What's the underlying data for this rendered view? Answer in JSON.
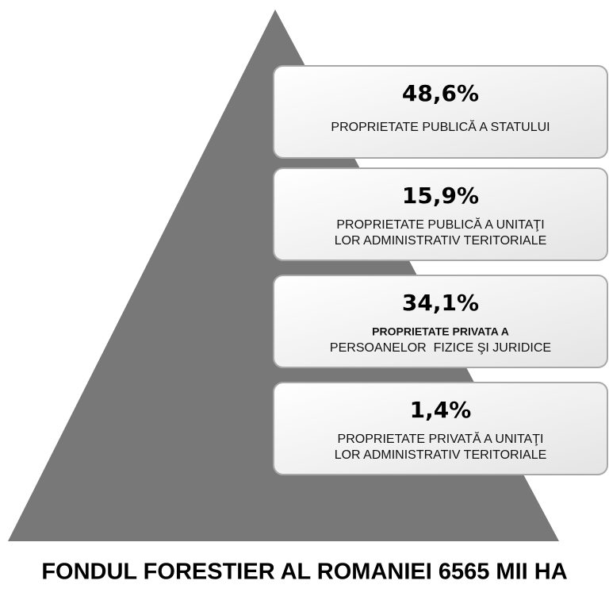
{
  "diagram": {
    "boxes": [
      {
        "percent": "48,6%",
        "lines": [
          "PROPRIETATE PUBLICĂ A STATULUI"
        ]
      },
      {
        "percent": "15,9%",
        "lines": [
          "PROPRIETATE PUBLICĂ A UNITAŢI",
          "LOR ADMINISTRATIV TERITORIALE"
        ]
      },
      {
        "percent": "34,1%",
        "lines": [
          "PROPRIETATE PRIVATA A",
          "PERSOANELOR  FIZICE ŞI JURIDICE"
        ],
        "bold_first_line": true
      },
      {
        "percent": "1,4%",
        "lines": [
          "PROPRIETATE PRIVATĂ A UNITAŢI",
          "LOR ADMINISTRATIV TERITORIALE"
        ]
      }
    ],
    "title": "FONDUL FORESTIER AL ROMANIEI 6565 MII HA"
  }
}
